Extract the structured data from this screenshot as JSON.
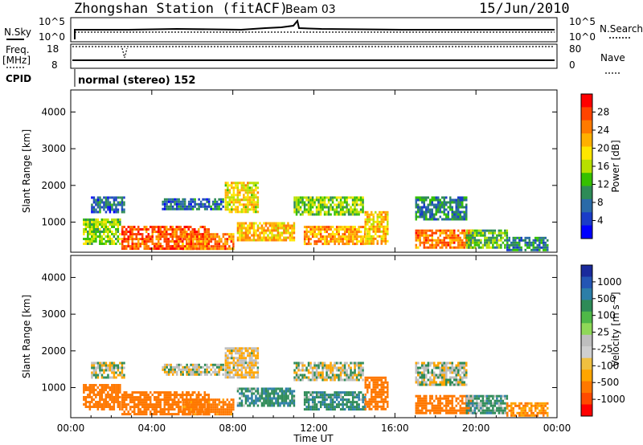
{
  "header": {
    "title": "Zhongshan Station (fitACF)",
    "beam": "Beam 03",
    "date": "15/Jun/2010"
  },
  "noise_panel": {
    "left_label": "N.Sky",
    "right_label": "N.Search",
    "left_ticks": [
      "10^5",
      "10^0"
    ],
    "right_ticks": [
      "10^5",
      "10^0"
    ]
  },
  "freq_panel": {
    "left_label_line1": "Freq.",
    "left_label_line2": "[MHz]",
    "left_ticks": [
      "18",
      "8"
    ],
    "right_label": "Nave",
    "right_ticks": [
      "80",
      "0"
    ]
  },
  "cpid": {
    "label": "CPID",
    "value": "normal (stereo) 152"
  },
  "colorbars": {
    "power": {
      "label": "Power [dB]",
      "ticks": [
        "28",
        "24",
        "20",
        "16",
        "12",
        "8",
        "4"
      ],
      "colors": [
        "#ff0000",
        "#ff4400",
        "#ff7a00",
        "#ffb000",
        "#ffe600",
        "#b8e000",
        "#36c000",
        "#2e8b57",
        "#2a6aa8",
        "#1a3cc8",
        "#0000ff"
      ]
    },
    "velocity": {
      "label": "Velocity [m s⁻¹]",
      "ticks": [
        "1000",
        "500",
        "100",
        "25",
        "-25",
        "-100",
        "-500",
        "-1000"
      ],
      "colors": [
        "#1a2a9c",
        "#2456b4",
        "#2c7ea8",
        "#2e8b57",
        "#4fb848",
        "#8fd858",
        "#bebebe",
        "#cfcfcf",
        "#f0c040",
        "#ffa500",
        "#ff7800",
        "#ff4a00",
        "#ff0000"
      ]
    }
  },
  "chart_data": [
    {
      "type": "heatmap",
      "title": "Power",
      "ylabel": "Slant Range [km]",
      "ylim": [
        180,
        4600
      ],
      "yticks": [
        "1000",
        "2000",
        "3000",
        "4000"
      ],
      "xlim": [
        "00:00",
        "24:00"
      ],
      "colorbar_label": "Power [dB]",
      "colorbar_range": [
        0,
        30
      ],
      "echo_regions": [
        {
          "t_start": 0.6,
          "t_end": 2.4,
          "r_low": 400,
          "r_high": 1100,
          "power_db": 14
        },
        {
          "t_start": 1.0,
          "t_end": 2.6,
          "r_low": 1300,
          "r_high": 1700,
          "power_db": 6
        },
        {
          "t_start": 2.5,
          "t_end": 6.8,
          "r_low": 300,
          "r_high": 900,
          "power_db": 26
        },
        {
          "t_start": 4.5,
          "t_end": 7.5,
          "r_low": 1350,
          "r_high": 1650,
          "power_db": 6
        },
        {
          "t_start": 5.5,
          "t_end": 8.0,
          "r_low": 250,
          "r_high": 700,
          "power_db": 24
        },
        {
          "t_start": 7.6,
          "t_end": 9.2,
          "r_low": 1300,
          "r_high": 2100,
          "power_db": 18
        },
        {
          "t_start": 8.2,
          "t_end": 11.0,
          "r_low": 500,
          "r_high": 1000,
          "power_db": 20
        },
        {
          "t_start": 11.0,
          "t_end": 14.4,
          "r_low": 1200,
          "r_high": 1700,
          "power_db": 14
        },
        {
          "t_start": 11.5,
          "t_end": 14.5,
          "r_low": 400,
          "r_high": 900,
          "power_db": 22
        },
        {
          "t_start": 14.5,
          "t_end": 15.6,
          "r_low": 400,
          "r_high": 1300,
          "power_db": 20
        },
        {
          "t_start": 17.0,
          "t_end": 19.5,
          "r_low": 1100,
          "r_high": 1700,
          "power_db": 8
        },
        {
          "t_start": 17.0,
          "t_end": 19.8,
          "r_low": 300,
          "r_high": 800,
          "power_db": 24
        },
        {
          "t_start": 19.5,
          "t_end": 21.5,
          "r_low": 300,
          "r_high": 800,
          "power_db": 12
        },
        {
          "t_start": 21.5,
          "t_end": 23.5,
          "r_low": 250,
          "r_high": 600,
          "power_db": 8
        }
      ]
    },
    {
      "type": "heatmap",
      "title": "Velocity",
      "ylabel": "Slant Range [km]",
      "ylim": [
        180,
        4600
      ],
      "yticks": [
        "1000",
        "2000",
        "3000",
        "4000"
      ],
      "xlim": [
        "00:00",
        "24:00"
      ],
      "xlabel": "Time UT",
      "xticks": [
        "00:00",
        "04:00",
        "08:00",
        "12:00",
        "16:00",
        "20:00",
        "00:00"
      ],
      "colorbar_label": "Velocity [m s⁻¹]",
      "colorbar_range": [
        -1000,
        1000
      ],
      "echo_regions": [
        {
          "t_start": 0.6,
          "t_end": 2.4,
          "r_low": 400,
          "r_high": 1100,
          "velocity": -200
        },
        {
          "t_start": 1.0,
          "t_end": 2.6,
          "r_low": 1300,
          "r_high": 1700,
          "velocity": 0
        },
        {
          "t_start": 2.5,
          "t_end": 6.8,
          "r_low": 300,
          "r_high": 900,
          "velocity": -200
        },
        {
          "t_start": 4.5,
          "t_end": 7.5,
          "r_low": 1350,
          "r_high": 1650,
          "velocity": 0
        },
        {
          "t_start": 5.5,
          "t_end": 8.0,
          "r_low": 250,
          "r_high": 700,
          "velocity": -150
        },
        {
          "t_start": 7.6,
          "t_end": 9.2,
          "r_low": 1300,
          "r_high": 2100,
          "velocity": -30
        },
        {
          "t_start": 8.2,
          "t_end": 11.0,
          "r_low": 500,
          "r_high": 1000,
          "velocity": 80
        },
        {
          "t_start": 11.0,
          "t_end": 14.4,
          "r_low": 1200,
          "r_high": 1700,
          "velocity": 0
        },
        {
          "t_start": 11.5,
          "t_end": 14.5,
          "r_low": 400,
          "r_high": 900,
          "velocity": 80
        },
        {
          "t_start": 14.5,
          "t_end": 15.6,
          "r_low": 400,
          "r_high": 1300,
          "velocity": -200
        },
        {
          "t_start": 17.0,
          "t_end": 19.5,
          "r_low": 1100,
          "r_high": 1700,
          "velocity": 0
        },
        {
          "t_start": 17.0,
          "t_end": 19.8,
          "r_low": 300,
          "r_high": 800,
          "velocity": -200
        },
        {
          "t_start": 19.5,
          "t_end": 21.5,
          "r_low": 300,
          "r_high": 800,
          "velocity": 60
        },
        {
          "t_start": 21.5,
          "t_end": 23.5,
          "r_low": 250,
          "r_high": 600,
          "velocity": -100
        }
      ]
    }
  ]
}
